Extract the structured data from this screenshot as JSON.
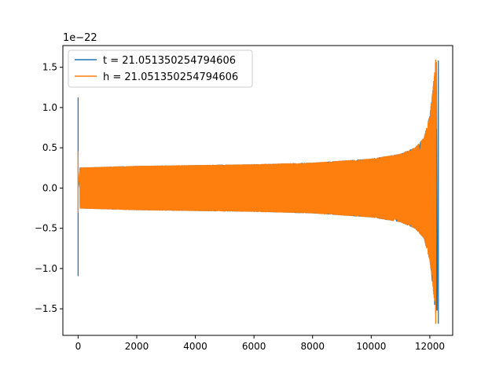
{
  "chart_data": {
    "type": "line",
    "title": "",
    "xlabel": "",
    "ylabel": "",
    "offset_label": "1e−22",
    "xlim": [
      -520,
      12780
    ],
    "ylim": [
      -1.83,
      1.77
    ],
    "grid": false,
    "legend_position": "upper left",
    "x_ticks": [
      0,
      2000,
      4000,
      6000,
      8000,
      10000,
      12000
    ],
    "x_tick_labels": [
      "0",
      "2000",
      "4000",
      "6000",
      "8000",
      "10000",
      "12000"
    ],
    "y_ticks": [
      -1.5,
      -1.0,
      -0.5,
      0.0,
      0.5,
      1.0,
      1.5
    ],
    "y_tick_labels": [
      "−1.5",
      "−1.0",
      "−0.5",
      "0.0",
      "0.5",
      "1.0",
      "1.5"
    ],
    "series": [
      {
        "name": "t = 21.051350254794606",
        "color": "#1f77b4",
        "x_range": [
          0,
          12290
        ],
        "initial_spike": {
          "x": 0,
          "max": 1.12,
          "min": -1.09
        },
        "envelope_x": [
          100,
          2000,
          4000,
          6000,
          8000,
          10000,
          11000,
          11500,
          11800,
          12000,
          12100,
          12200
        ],
        "envelope_amp": [
          0.25,
          0.27,
          0.28,
          0.29,
          0.31,
          0.36,
          0.42,
          0.5,
          0.62,
          0.9,
          1.2,
          1.58
        ],
        "final_spike": {
          "x": 12290,
          "max": 1.58,
          "min": -1.68
        }
      },
      {
        "name": "h = 21.051350254794606",
        "color": "#ff7f0e",
        "x_range": [
          0,
          12220
        ],
        "initial_spike": {
          "x": 0,
          "max": 0.45,
          "min": -0.3
        },
        "envelope_x": [
          100,
          2000,
          4000,
          6000,
          8000,
          10000,
          11000,
          11500,
          11800,
          12000,
          12100,
          12200
        ],
        "envelope_amp": [
          0.25,
          0.27,
          0.28,
          0.29,
          0.31,
          0.36,
          0.42,
          0.5,
          0.62,
          0.9,
          1.2,
          1.58
        ],
        "final_spike": {
          "x": 12200,
          "max": 1.59,
          "min": -1.68
        }
      }
    ]
  }
}
